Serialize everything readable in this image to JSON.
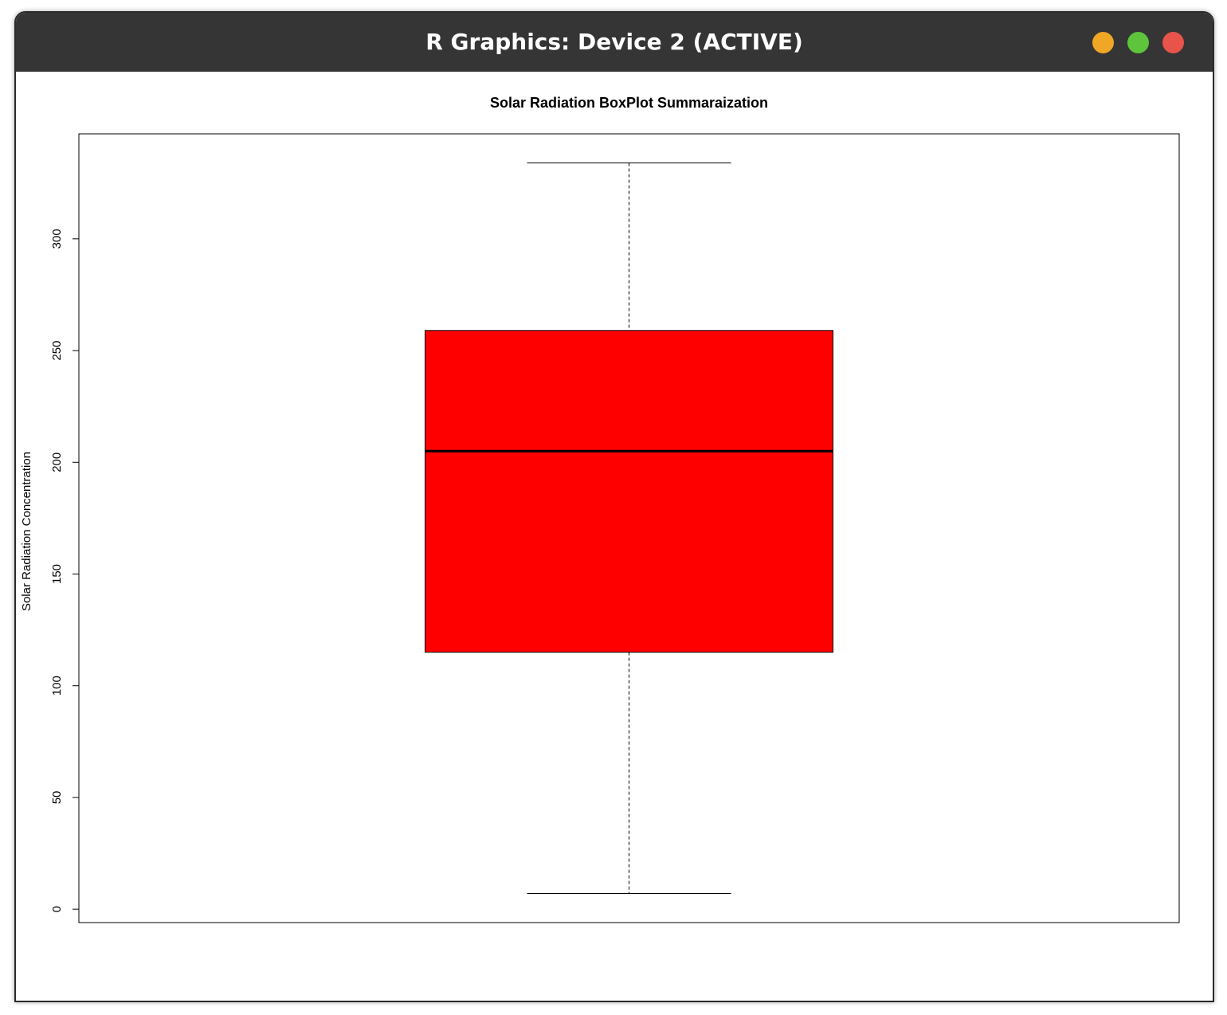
{
  "window": {
    "title": "R Graphics: Device 2 (ACTIVE)",
    "buttons": {
      "minimize": {
        "icon": "minimize-icon",
        "color": "#f0a725"
      },
      "maximize": {
        "icon": "maximize-icon",
        "color": "#5ec43c"
      },
      "close": {
        "icon": "close-icon",
        "color": "#e8534a"
      }
    }
  },
  "chart_data": {
    "type": "boxplot",
    "title": "Solar Radiation BoxPlot Summaraization",
    "xlabel": "",
    "ylabel": "Solar Radiation Concentration",
    "ylim": [
      -6,
      347
    ],
    "yticks": [
      0,
      50,
      100,
      150,
      200,
      250,
      300
    ],
    "ytick_labels": [
      "0",
      "50",
      "100",
      "150",
      "200",
      "250",
      "300"
    ],
    "box": {
      "min": 7,
      "q1": 115,
      "median": 205,
      "q3": 259,
      "max": 334,
      "fill": "#ff0000"
    },
    "grid": false
  }
}
